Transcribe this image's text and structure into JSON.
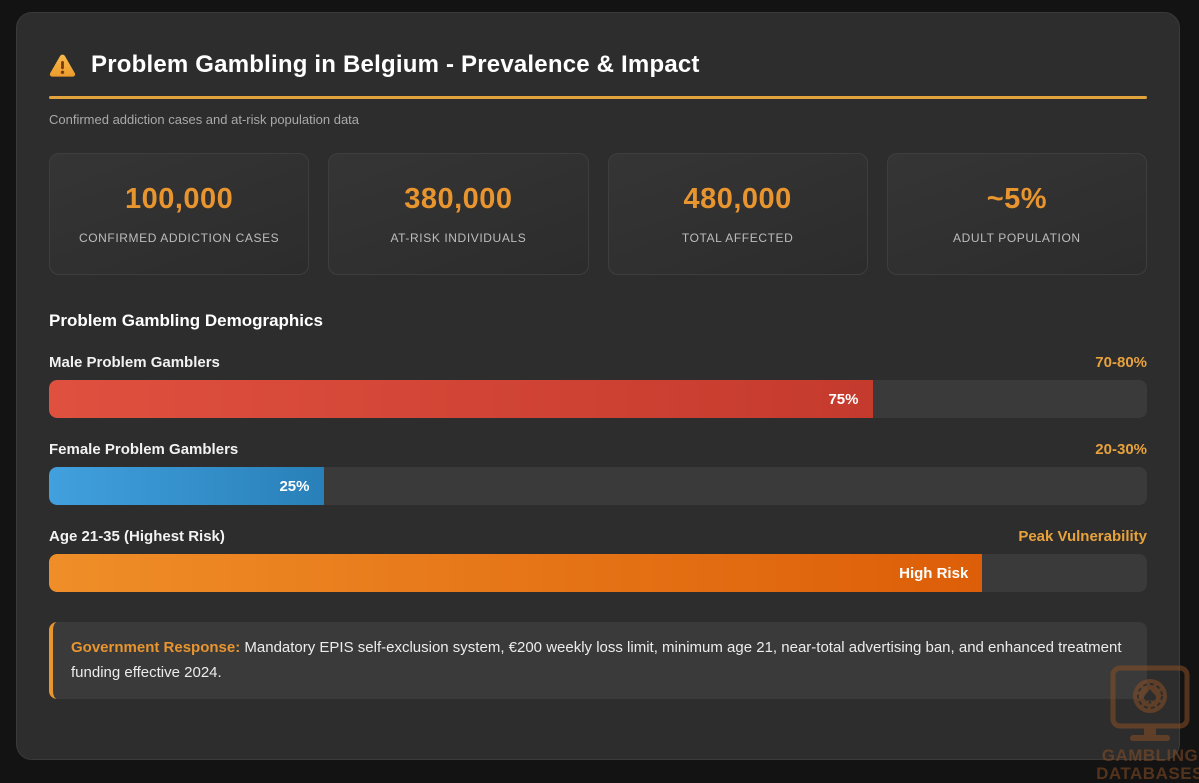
{
  "header": {
    "title": "Problem Gambling in Belgium - Prevalence & Impact",
    "subtitle": "Confirmed addiction cases and at-risk population data",
    "warning_icon": "warning-triangle-icon"
  },
  "stats": [
    {
      "value": "100,000",
      "label": "CONFIRMED ADDICTION CASES"
    },
    {
      "value": "380,000",
      "label": "AT-RISK INDIVIDUALS"
    },
    {
      "value": "480,000",
      "label": "TOTAL AFFECTED"
    },
    {
      "value": "~5%",
      "label": "ADULT POPULATION"
    }
  ],
  "demographics": {
    "section_title": "Problem Gambling Demographics",
    "bars": [
      {
        "label": "Male Problem Gamblers",
        "range_label": "70-80%",
        "fill_label": "75%",
        "fill_percent": 75,
        "color_start": "#e0503f",
        "color_end": "#c43a2d"
      },
      {
        "label": "Female Problem Gamblers",
        "range_label": "20-30%",
        "fill_label": "25%",
        "fill_percent": 25,
        "color_start": "#41a0dd",
        "color_end": "#2980b9"
      },
      {
        "label": "Age 21-35 (Highest Risk)",
        "range_label": "Peak Vulnerability",
        "fill_label": "High Risk",
        "fill_percent": 85,
        "color_start": "#ef8e28",
        "color_end": "#dd5e08"
      }
    ]
  },
  "note": {
    "label": "Government Response:",
    "text": " Mandatory EPIS self-exclusion system, €200 weekly loss limit, minimum age 21, near-total advertising ban, and enhanced treatment funding effective 2024."
  },
  "watermark": {
    "line1": "GAMBLING",
    "line2": "DATABASES"
  },
  "colors": {
    "accent_orange": "#e8952f",
    "underline_orange": "#e2a23c",
    "panel_bg": "#2d2d2d",
    "page_bg": "#131313",
    "track_bg": "#3a3a3a",
    "male_bar": "#d9453a",
    "female_bar": "#3498db",
    "age_bar": "#e67e22"
  },
  "chart_data": {
    "type": "bar",
    "orientation": "horizontal",
    "title": "Problem Gambling Demographics",
    "categories": [
      "Male Problem Gamblers",
      "Female Problem Gamblers",
      "Age 21-35 (Highest Risk)"
    ],
    "values": [
      75,
      25,
      85
    ],
    "bar_labels": [
      "75%",
      "25%",
      "High Risk"
    ],
    "range_labels": [
      "70-80%",
      "20-30%",
      "Peak Vulnerability"
    ],
    "bar_colors": [
      "#d9453a",
      "#3498db",
      "#e67e22"
    ],
    "xlim": [
      0,
      100
    ],
    "grid": false,
    "legend": false
  }
}
